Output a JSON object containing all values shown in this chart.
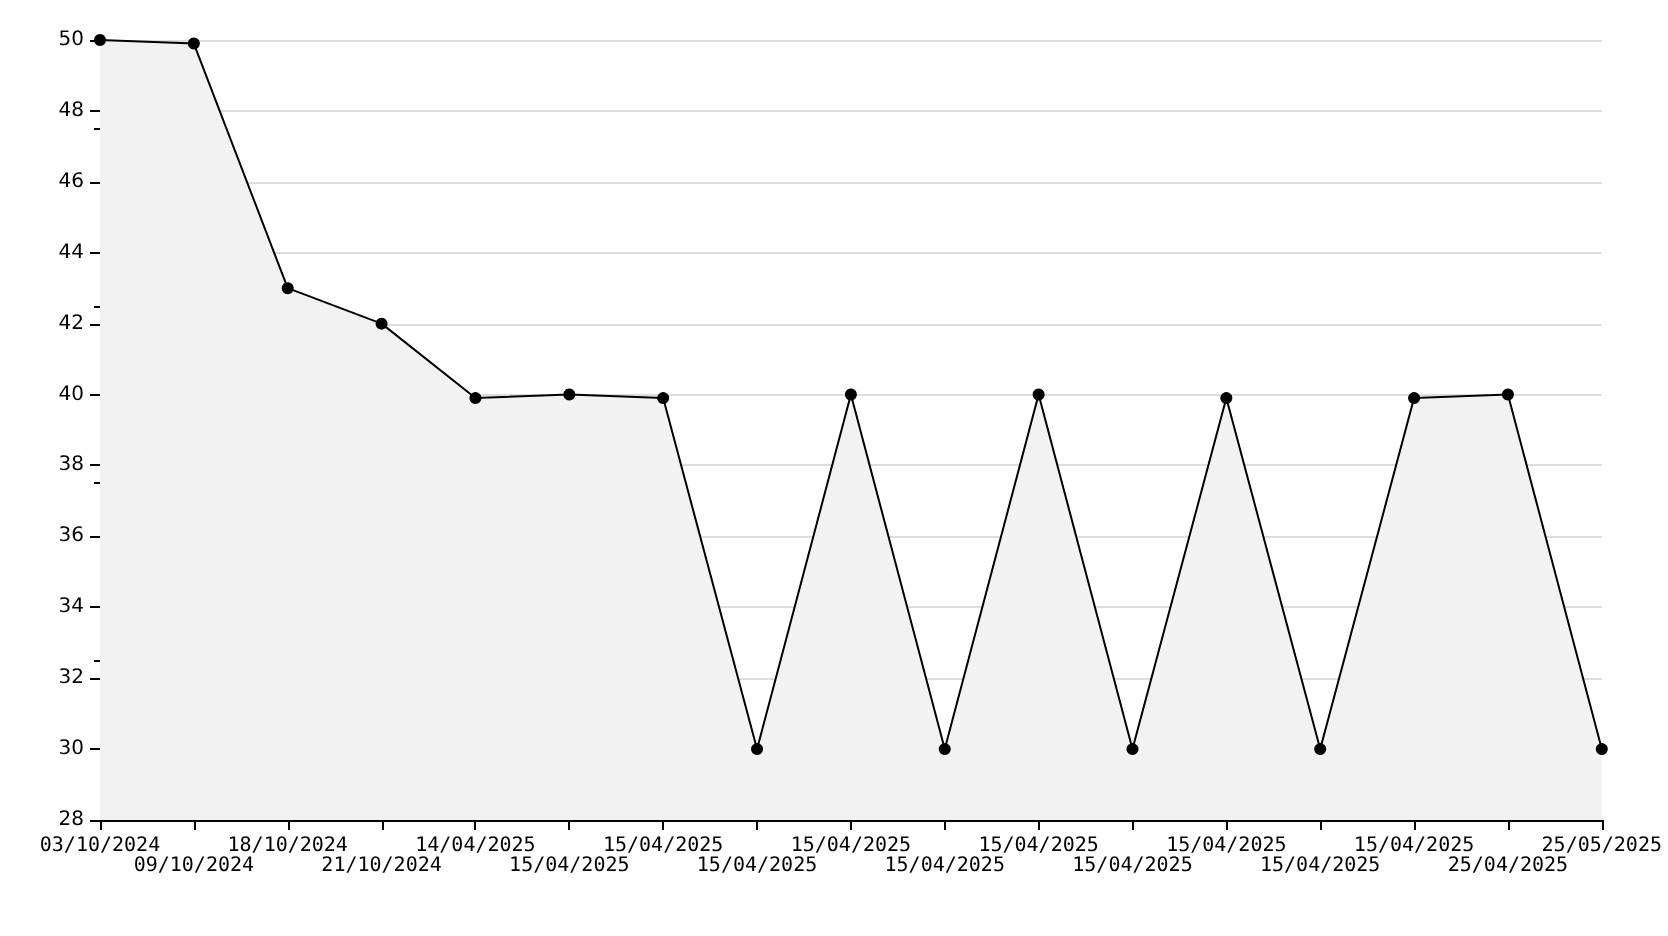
{
  "chart_data": {
    "type": "area",
    "categories": [
      "03/10/2024",
      "09/10/2024",
      "18/10/2024",
      "21/10/2024",
      "14/04/2025",
      "15/04/2025",
      "15/04/2025",
      "15/04/2025",
      "15/04/2025",
      "15/04/2025",
      "15/04/2025",
      "15/04/2025",
      "15/04/2025",
      "15/04/2025",
      "15/04/2025",
      "25/04/2025",
      "25/05/2025"
    ],
    "series": [
      {
        "color": "#000000",
        "values": [
          50,
          49.9,
          43,
          42,
          39.9,
          40,
          39.9,
          30,
          40,
          30,
          40,
          30,
          39.9,
          30,
          39.9,
          40,
          30
        ]
      }
    ],
    "ylim": [
      28,
      50
    ],
    "yticks": [
      28,
      30,
      32,
      34,
      36,
      38,
      40,
      42,
      44,
      46,
      48,
      50
    ],
    "grid": "y",
    "marker": "circle",
    "line_style": "solid"
  }
}
